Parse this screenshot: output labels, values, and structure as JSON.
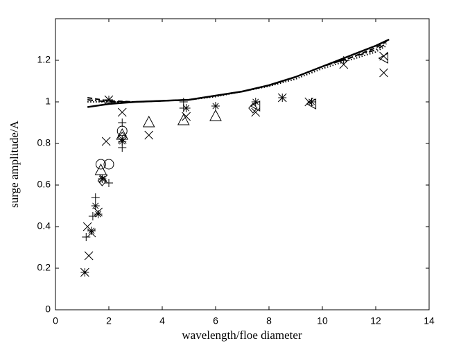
{
  "chart_data": {
    "type": "scatter-line",
    "x_label": "wavelength/floe diameter",
    "y_label": "surge amplitude/A",
    "xlim": [
      0,
      14
    ],
    "ylim": [
      0,
      1.4
    ],
    "xticks": [
      0,
      2,
      4,
      6,
      8,
      10,
      12,
      14
    ],
    "yticks": [
      0,
      0.2,
      0.4,
      0.6,
      0.8,
      1,
      1.2
    ],
    "grid": false,
    "color": "#000000",
    "lines": [
      {
        "style": "solid",
        "x": [
          1.2,
          2,
          3,
          4,
          5,
          6,
          7,
          8,
          9,
          10,
          11,
          12,
          12.5
        ],
        "values": [
          0.975,
          0.99,
          1.0,
          1.005,
          1.01,
          1.03,
          1.05,
          1.08,
          1.12,
          1.17,
          1.22,
          1.27,
          1.3
        ]
      },
      {
        "style": "dashed",
        "x": [
          1.2,
          2,
          3,
          4,
          5,
          6,
          7,
          8,
          9,
          10,
          11,
          12,
          12.4
        ],
        "values": [
          1.02,
          1.005,
          1.0,
          1.005,
          1.01,
          1.03,
          1.05,
          1.08,
          1.12,
          1.17,
          1.21,
          1.26,
          1.29
        ]
      },
      {
        "style": "dashdot",
        "x": [
          1.2,
          2,
          3,
          4,
          5,
          6,
          7,
          8,
          9,
          10,
          11,
          12,
          12.4
        ],
        "values": [
          1.01,
          1.0,
          1.0,
          1.005,
          1.01,
          1.03,
          1.05,
          1.08,
          1.12,
          1.17,
          1.21,
          1.25,
          1.28
        ]
      },
      {
        "style": "dotted",
        "x": [
          1.2,
          2,
          3,
          4,
          5,
          6,
          7,
          8,
          9,
          10,
          11,
          12,
          12.4
        ],
        "values": [
          1.0,
          1.0,
          1.0,
          1.005,
          1.01,
          1.025,
          1.05,
          1.075,
          1.11,
          1.16,
          1.2,
          1.24,
          1.27
        ]
      }
    ],
    "series": [
      {
        "marker": "x",
        "x": [
          1.1,
          1.25,
          1.2,
          1.35,
          1.9,
          2.0,
          2.5,
          2.5,
          3.5,
          4.9,
          7.5,
          8.5,
          9.5,
          10.8,
          12.3,
          12.3,
          1.8,
          1.6
        ],
        "values": [
          0.18,
          0.26,
          0.4,
          0.37,
          0.81,
          1.01,
          0.95,
          0.82,
          0.84,
          0.93,
          0.95,
          1.02,
          1.0,
          1.18,
          1.14,
          1.22,
          0.63,
          0.47
        ]
      },
      {
        "marker": "+",
        "x": [
          1.15,
          1.4,
          1.5,
          2.0,
          2.5,
          2.5,
          2.5,
          4.8,
          4.8,
          10.8
        ],
        "values": [
          0.35,
          0.45,
          0.54,
          0.61,
          0.78,
          0.82,
          0.9,
          0.97,
          1.0,
          1.2
        ]
      },
      {
        "marker": "*",
        "x": [
          1.1,
          1.35,
          1.5,
          1.6,
          1.75,
          2.5,
          4.9,
          6.0,
          7.5,
          8.5,
          9.6,
          2.0
        ],
        "values": [
          0.18,
          0.38,
          0.5,
          0.46,
          0.63,
          0.81,
          0.97,
          0.98,
          1.0,
          1.02,
          1.0,
          1.01
        ]
      },
      {
        "marker": "o",
        "x": [
          1.7,
          2.0,
          2.5
        ],
        "values": [
          0.7,
          0.7,
          0.86
        ]
      },
      {
        "marker": "^",
        "x": [
          1.7,
          2.5,
          3.5,
          4.8,
          6.0
        ],
        "values": [
          0.67,
          0.84,
          0.9,
          0.91,
          0.93
        ]
      },
      {
        "marker": "d",
        "x": [
          1.75,
          2.5,
          7.4
        ],
        "values": [
          0.62,
          0.83,
          0.97
        ]
      },
      {
        "marker": "<",
        "x": [
          7.5,
          9.6,
          12.3
        ],
        "values": [
          0.98,
          0.99,
          1.21
        ]
      }
    ]
  }
}
